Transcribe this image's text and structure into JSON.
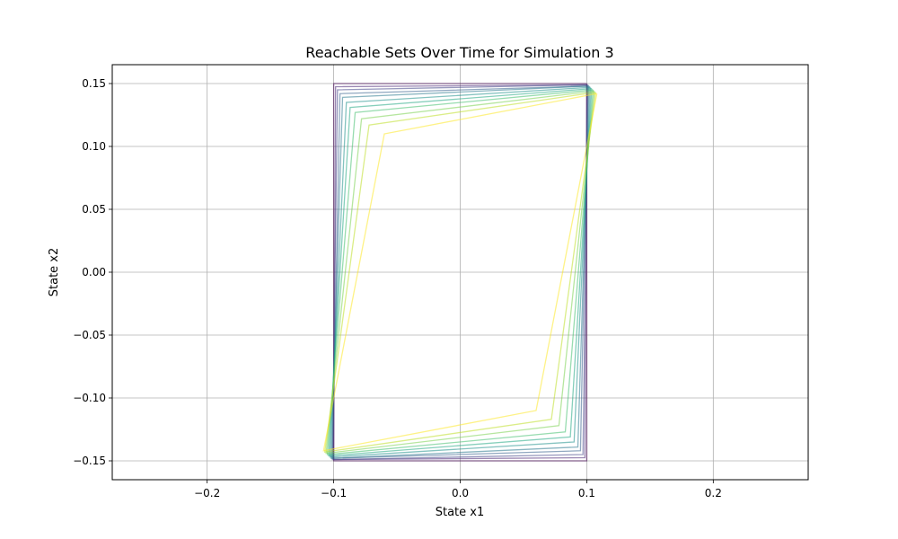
{
  "chart_data": {
    "type": "line",
    "title": "Reachable Sets Over Time for Simulation 3",
    "xlabel": "State x1",
    "ylabel": "State x2",
    "xlim": [
      -0.275,
      0.275
    ],
    "ylim": [
      -0.165,
      0.165
    ],
    "xticks": [
      -0.2,
      -0.1,
      0.0,
      0.1,
      0.2
    ],
    "xtick_labels": [
      "−0.2",
      "−0.1",
      "0.0",
      "0.1",
      "0.2"
    ],
    "yticks": [
      -0.15,
      -0.1,
      -0.05,
      0.0,
      0.05,
      0.1,
      0.15
    ],
    "ytick_labels": [
      "−0.15",
      "−0.10",
      "−0.05",
      "0.00",
      "0.05",
      "0.10",
      "0.15"
    ],
    "grid": true,
    "colormap": "viridis",
    "series": [
      {
        "color": "#440154",
        "points": [
          [
            0.1,
            0.15
          ],
          [
            0.1,
            -0.15
          ],
          [
            -0.1,
            -0.15
          ],
          [
            -0.1,
            0.15
          ]
        ]
      },
      {
        "color": "#482475",
        "points": [
          [
            0.1,
            0.149
          ],
          [
            0.0985,
            -0.1475
          ],
          [
            -0.1,
            -0.149
          ],
          [
            -0.0985,
            0.1475
          ]
        ]
      },
      {
        "color": "#414487",
        "points": [
          [
            0.101,
            0.149
          ],
          [
            0.097,
            -0.145
          ],
          [
            -0.101,
            -0.149
          ],
          [
            -0.097,
            0.145
          ]
        ]
      },
      {
        "color": "#355f8d",
        "points": [
          [
            0.101,
            0.148
          ],
          [
            0.095,
            -0.142
          ],
          [
            -0.101,
            -0.148
          ],
          [
            -0.095,
            0.142
          ]
        ]
      },
      {
        "color": "#2a788e",
        "points": [
          [
            0.102,
            0.148
          ],
          [
            0.093,
            -0.139
          ],
          [
            -0.102,
            -0.148
          ],
          [
            -0.093,
            0.139
          ]
        ]
      },
      {
        "color": "#21918c",
        "points": [
          [
            0.103,
            0.147
          ],
          [
            0.09,
            -0.135
          ],
          [
            -0.103,
            -0.147
          ],
          [
            -0.09,
            0.135
          ]
        ]
      },
      {
        "color": "#22a884",
        "points": [
          [
            0.104,
            0.146
          ],
          [
            0.087,
            -0.131
          ],
          [
            -0.104,
            -0.146
          ],
          [
            -0.087,
            0.131
          ]
        ]
      },
      {
        "color": "#44bf70",
        "points": [
          [
            0.105,
            0.145
          ],
          [
            0.083,
            -0.127
          ],
          [
            -0.105,
            -0.145
          ],
          [
            -0.083,
            0.127
          ]
        ]
      },
      {
        "color": "#7ad151",
        "points": [
          [
            0.106,
            0.144
          ],
          [
            0.078,
            -0.122
          ],
          [
            -0.106,
            -0.144
          ],
          [
            -0.078,
            0.122
          ]
        ]
      },
      {
        "color": "#bddf26",
        "points": [
          [
            0.107,
            0.143
          ],
          [
            0.072,
            -0.117
          ],
          [
            -0.107,
            -0.143
          ],
          [
            -0.072,
            0.117
          ]
        ]
      },
      {
        "color": "#fde725",
        "points": [
          [
            0.108,
            0.142
          ],
          [
            0.06,
            -0.11
          ],
          [
            -0.108,
            -0.142
          ],
          [
            -0.06,
            0.11
          ]
        ]
      }
    ]
  }
}
